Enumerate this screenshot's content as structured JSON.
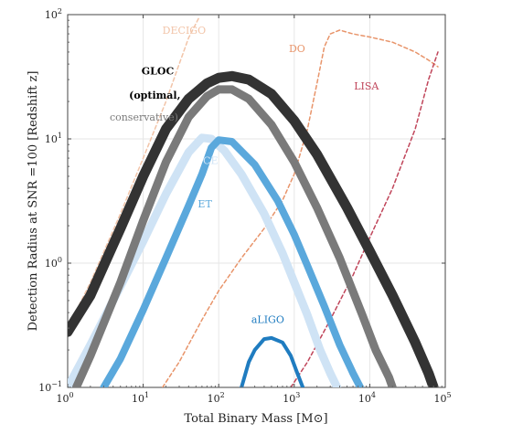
{
  "chart_data": {
    "type": "line",
    "xlabel": "Total Binary Mass",
    "xunit": "[M⊙]",
    "ylabel": "Detection Radius at SNR =100 [Redshift  z]",
    "xscale": "log",
    "yscale": "log",
    "xlim": [
      1,
      100000
    ],
    "ylim": [
      0.1,
      100
    ],
    "grid": true,
    "xticks": [
      {
        "value": 1,
        "base": "10",
        "exp": "0"
      },
      {
        "value": 10,
        "base": "10",
        "exp": "1"
      },
      {
        "value": 100,
        "base": "10",
        "exp": "2"
      },
      {
        "value": 1000,
        "base": "10",
        "exp": "3"
      },
      {
        "value": 10000,
        "base": "10",
        "exp": "4"
      },
      {
        "value": 100000,
        "base": "10",
        "exp": "5"
      }
    ],
    "yticks": [
      {
        "value": 0.1,
        "base": "10",
        "exp": "−1"
      },
      {
        "value": 1,
        "base": "10",
        "exp": "0"
      },
      {
        "value": 10,
        "base": "10",
        "exp": "1"
      },
      {
        "value": 100,
        "base": "10",
        "exp": "2"
      }
    ],
    "series": [
      {
        "name": "DECIGO",
        "color": "#f2c4a8",
        "style": "dashed",
        "x": [
          1,
          2,
          5,
          10,
          20,
          30,
          40,
          55
        ],
        "y": [
          0.3,
          0.7,
          2.5,
          7,
          20,
          40,
          65,
          95
        ]
      },
      {
        "name": "DO",
        "color": "#e8946a",
        "style": "dashed",
        "x": [
          18,
          30,
          60,
          100,
          200,
          400,
          700,
          1000,
          1500,
          2000,
          2500,
          3000,
          4000,
          6000,
          10000,
          20000,
          40000,
          60000,
          80000
        ],
        "y": [
          0.1,
          0.16,
          0.35,
          0.6,
          1.1,
          1.9,
          3.2,
          5.2,
          12,
          28,
          55,
          70,
          75,
          70,
          66,
          60,
          50,
          43,
          38
        ]
      },
      {
        "name": "LISA",
        "color": "#c0455a",
        "style": "dashed",
        "x": [
          900,
          1500,
          3000,
          6000,
          10000,
          20000,
          40000,
          60000,
          80000
        ],
        "y": [
          0.1,
          0.16,
          0.35,
          0.8,
          1.6,
          4,
          12,
          30,
          50
        ]
      },
      {
        "name": "CE",
        "label": "CE",
        "color": "#cfe3f5",
        "style": "band",
        "x": [
          1,
          2,
          5,
          10,
          20,
          40,
          60,
          80,
          120,
          200,
          400,
          700,
          1000,
          1500,
          2200,
          3000,
          3700
        ],
        "y": [
          0.1,
          0.22,
          0.65,
          1.5,
          3.6,
          7.8,
          10.2,
          10,
          8,
          5.2,
          2.5,
          1.2,
          0.7,
          0.38,
          0.2,
          0.13,
          0.1
        ],
        "width": 9
      },
      {
        "name": "ET",
        "label": "ET",
        "color": "#5aa8dc",
        "style": "band",
        "x": [
          3,
          5,
          10,
          20,
          40,
          60,
          80,
          100,
          150,
          300,
          600,
          1000,
          1500,
          2500,
          4000,
          6000,
          7500
        ],
        "y": [
          0.1,
          0.17,
          0.42,
          1.1,
          2.9,
          5.2,
          8.5,
          9.8,
          9.5,
          6.2,
          3.2,
          1.7,
          0.95,
          0.45,
          0.22,
          0.13,
          0.1
        ],
        "width": 8
      },
      {
        "name": "aLIGO",
        "label": "aLIGO",
        "color": "#1f7cc0",
        "style": "band",
        "x": [
          200,
          250,
          300,
          400,
          500,
          700,
          900,
          1100,
          1300
        ],
        "y": [
          0.1,
          0.16,
          0.2,
          0.245,
          0.25,
          0.23,
          0.18,
          0.13,
          0.1
        ],
        "width": 4
      },
      {
        "name": "GLOC conservative",
        "label": "conservative)",
        "color": "#7a7a7a",
        "style": "band",
        "x": [
          1.3,
          2,
          5,
          10,
          20,
          40,
          70,
          100,
          150,
          250,
          500,
          1000,
          2000,
          4000,
          8000,
          12000,
          18000,
          20000
        ],
        "y": [
          0.1,
          0.18,
          0.7,
          2.2,
          6.5,
          15,
          22,
          25,
          25,
          21,
          13,
          6.5,
          2.8,
          1.1,
          0.38,
          0.2,
          0.12,
          0.1
        ],
        "width": 9
      },
      {
        "name": "GLOC optimal",
        "label": "(optimal,",
        "color": "#333333",
        "style": "band",
        "x": [
          1,
          2,
          5,
          10,
          20,
          40,
          70,
          100,
          150,
          250,
          500,
          1000,
          2000,
          5000,
          10000,
          20000,
          40000,
          60000,
          70000
        ],
        "y": [
          0.28,
          0.55,
          1.9,
          5,
          12,
          21,
          28,
          31,
          32,
          30,
          23,
          14,
          7.5,
          2.8,
          1.25,
          0.55,
          0.23,
          0.13,
          0.1
        ],
        "width": 11
      }
    ],
    "annotations": [
      {
        "text": "DECIGO",
        "color": "#f2c4a8",
        "x": 18,
        "y": 70
      },
      {
        "text": "DO",
        "color": "#e8946a",
        "x": 850,
        "y": 50
      },
      {
        "text": "LISA",
        "color": "#c0455a",
        "x": 6200,
        "y": 25
      },
      {
        "text": "GLOC",
        "color": "#000000",
        "x": 9.5,
        "y": 33,
        "bold": true
      },
      {
        "text": "(optimal,",
        "color": "#000000",
        "x": 6.5,
        "y": 21,
        "bold": true
      },
      {
        "text": "conservative)",
        "color": "#7a7a7a",
        "x": 3.6,
        "y": 14
      },
      {
        "text": "CE",
        "color": "#cfe3f5",
        "x": 62,
        "y": 6.3
      },
      {
        "text": "ET",
        "color": "#5aa8dc",
        "x": 53,
        "y": 2.8
      },
      {
        "text": "aLIGO",
        "color": "#1f7cc0",
        "x": 270,
        "y": 0.33
      }
    ]
  }
}
